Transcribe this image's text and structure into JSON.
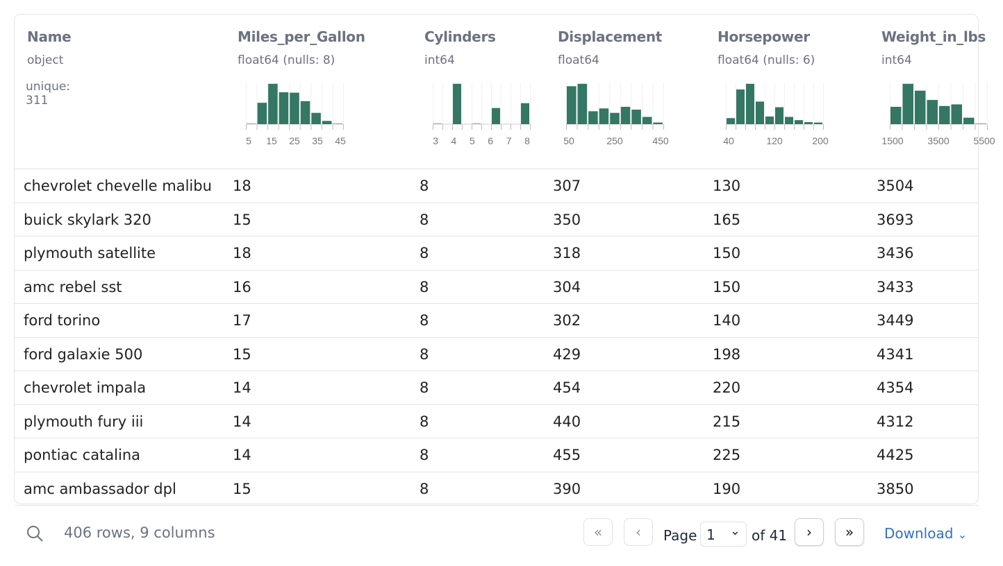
{
  "colors": {
    "bar": "#347764",
    "accent": "#2f6fd6"
  },
  "columns": [
    {
      "name": "Name",
      "type": "object",
      "unique": "unique: 311"
    },
    {
      "name": "Miles_per_Gallon",
      "type": "float64 (nulls: 8)",
      "hist": [
        1,
        53,
        100,
        79,
        78,
        57,
        28,
        8,
        1
      ],
      "ticks": [
        "5",
        "15",
        "25",
        "35",
        "45"
      ]
    },
    {
      "name": "Cylinders",
      "type": "int64",
      "hist": [
        1,
        0,
        100,
        0,
        1,
        0,
        40,
        0,
        0,
        52
      ],
      "ticks": [
        "3",
        "4",
        "5",
        "6",
        "7",
        "8"
      ]
    },
    {
      "name": "Displacement",
      "type": "float64",
      "hist": [
        94,
        100,
        32,
        39,
        28,
        43,
        36,
        18,
        4
      ],
      "ticks": [
        "50",
        "250",
        "450"
      ]
    },
    {
      "name": "Horsepower",
      "type": "float64 (nulls: 6)",
      "hist": [
        15,
        86,
        100,
        56,
        19,
        42,
        18,
        10,
        5,
        4
      ],
      "ticks": [
        "40",
        "120",
        "200"
      ]
    },
    {
      "name": "Weight_in_lbs",
      "type": "int64",
      "hist": [
        43,
        100,
        83,
        60,
        45,
        49,
        16,
        1
      ],
      "ticks": [
        "1500",
        "3500",
        "5500"
      ]
    }
  ],
  "rows": [
    [
      "chevrolet chevelle malibu",
      "18",
      "8",
      "307",
      "130",
      "3504"
    ],
    [
      "buick skylark 320",
      "15",
      "8",
      "350",
      "165",
      "3693"
    ],
    [
      "plymouth satellite",
      "18",
      "8",
      "318",
      "150",
      "3436"
    ],
    [
      "amc rebel sst",
      "16",
      "8",
      "304",
      "150",
      "3433"
    ],
    [
      "ford torino",
      "17",
      "8",
      "302",
      "140",
      "3449"
    ],
    [
      "ford galaxie 500",
      "15",
      "8",
      "429",
      "198",
      "4341"
    ],
    [
      "chevrolet impala",
      "14",
      "8",
      "454",
      "220",
      "4354"
    ],
    [
      "plymouth fury iii",
      "14",
      "8",
      "440",
      "215",
      "4312"
    ],
    [
      "pontiac catalina",
      "14",
      "8",
      "455",
      "225",
      "4425"
    ],
    [
      "amc ambassador dpl",
      "15",
      "8",
      "390",
      "190",
      "3850"
    ]
  ],
  "footer": {
    "summary": "406 rows, 9 columns",
    "page_label": "Page",
    "page": "1",
    "of_label": "of 41",
    "download": "Download"
  }
}
